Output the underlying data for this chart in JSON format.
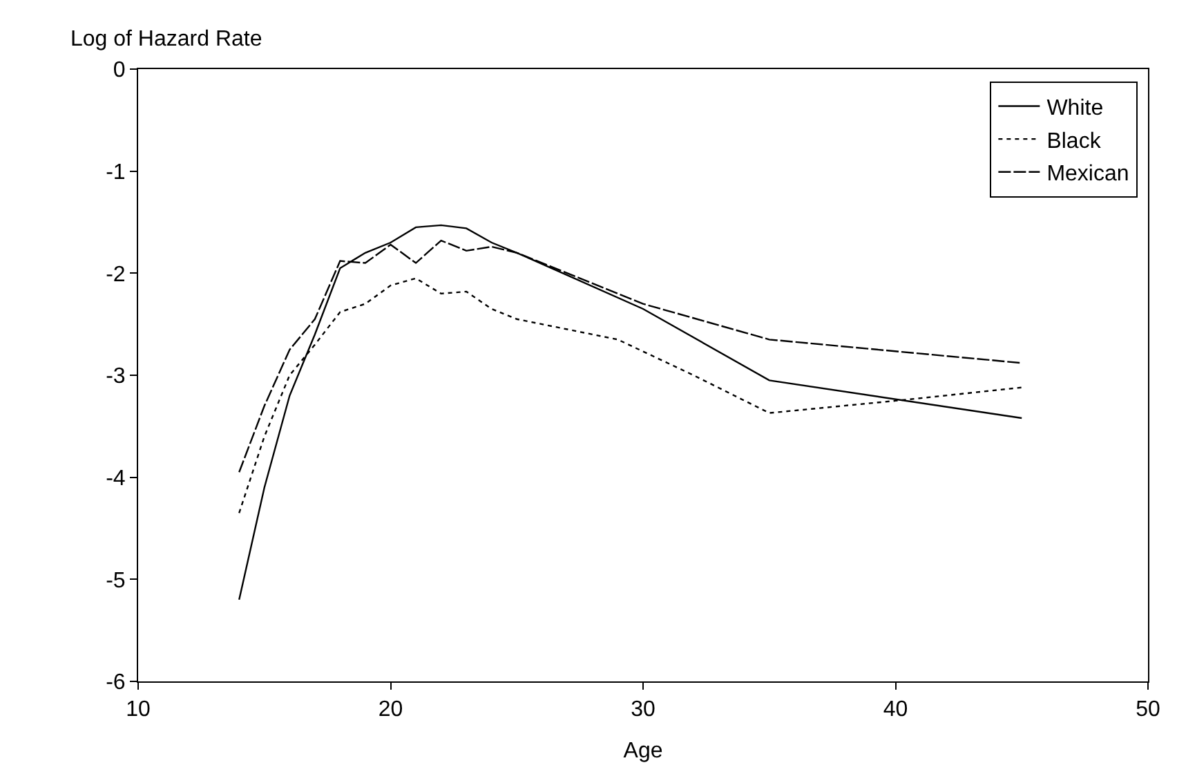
{
  "chart_data": {
    "type": "line",
    "ylabel": "Log of Hazard Rate",
    "xlabel": "Age",
    "xlim": [
      10,
      50
    ],
    "xticks": [
      10,
      20,
      30,
      40,
      50
    ],
    "ylim": [
      -6,
      0
    ],
    "yticks": [
      -6,
      -5,
      -4,
      -3,
      -2,
      -1,
      0
    ],
    "legend": "top right",
    "marker": "none",
    "series": [
      {
        "name": "White",
        "color": "#000000",
        "line_style": "solid",
        "x": [
          14,
          15,
          16,
          17,
          18,
          19,
          20,
          21,
          22,
          23,
          24,
          25,
          30,
          35,
          45
        ],
        "values": [
          -5.2,
          -4.1,
          -3.2,
          -2.6,
          -1.95,
          -1.8,
          -1.7,
          -1.55,
          -1.53,
          -1.56,
          -1.7,
          -1.8,
          -2.35,
          -3.05,
          -3.42
        ]
      },
      {
        "name": "Black",
        "color": "#000000",
        "line_style": "dotted",
        "x": [
          14,
          15,
          16,
          17,
          18,
          19,
          20,
          21,
          22,
          23,
          24,
          25,
          27,
          29,
          32,
          35,
          40,
          45
        ],
        "values": [
          -4.35,
          -3.6,
          -3.0,
          -2.7,
          -2.38,
          -2.3,
          -2.12,
          -2.05,
          -2.2,
          -2.18,
          -2.35,
          -2.45,
          -2.55,
          -2.65,
          -3.0,
          -3.37,
          -3.25,
          -3.12
        ]
      },
      {
        "name": "Mexican",
        "color": "#000000",
        "line_style": "dashed",
        "x": [
          14,
          15,
          16,
          17,
          18,
          19,
          20,
          21,
          22,
          23,
          24,
          25,
          30,
          35,
          45
        ],
        "values": [
          -3.95,
          -3.3,
          -2.75,
          -2.45,
          -1.88,
          -1.9,
          -1.72,
          -1.9,
          -1.68,
          -1.78,
          -1.74,
          -1.8,
          -2.3,
          -2.65,
          -2.88
        ]
      }
    ]
  }
}
